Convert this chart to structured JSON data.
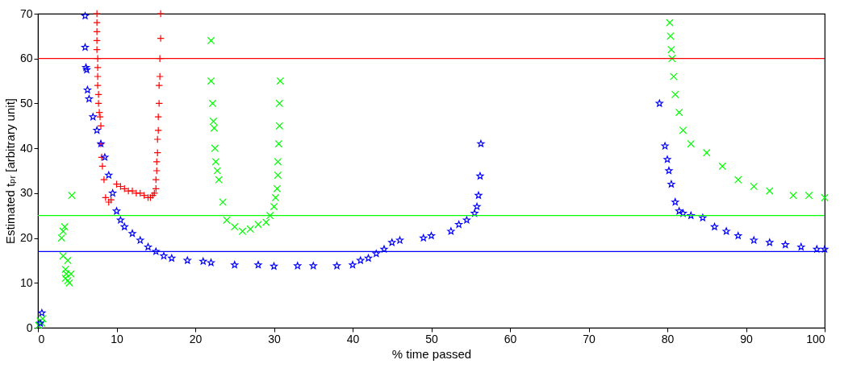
{
  "chart_data": {
    "type": "scatter",
    "xlabel": "% time passed",
    "ylabel": "Estimated tₚᵣ [arbitrary unit]",
    "xlim": [
      0,
      100
    ],
    "ylim": [
      0,
      70
    ],
    "xticks": [
      0,
      10,
      20,
      30,
      40,
      50,
      60,
      70,
      80,
      90,
      100
    ],
    "yticks": [
      0,
      10,
      20,
      30,
      40,
      50,
      60,
      70
    ],
    "grid": false,
    "series": [
      {
        "color": "#ff0000",
        "marker": "cross",
        "x": [
          7.5,
          7.5,
          7.5,
          7.5,
          7.5,
          7.6,
          7.6,
          7.6,
          7.6,
          7.7,
          7.7,
          7.8,
          7.9,
          8,
          8,
          8.1,
          8.2,
          8.4,
          8.6,
          9,
          9.3,
          10,
          10.5,
          11,
          11.5,
          12,
          12.5,
          13,
          13.5,
          14,
          14.3,
          14.6,
          14.8,
          15,
          15,
          15.1,
          15.1,
          15.2,
          15.2,
          15.3,
          15.3,
          15.4,
          15.4,
          15.5,
          15.5,
          15.6,
          15.6
        ],
        "values": [
          70,
          68,
          66,
          64,
          62,
          60,
          58,
          56,
          54,
          52,
          50,
          48,
          47,
          45,
          41,
          38,
          36,
          33,
          29,
          28,
          28.5,
          32,
          31.5,
          31,
          30.5,
          30.5,
          30,
          30,
          29.5,
          29,
          29,
          29.5,
          30,
          31,
          33,
          35,
          37,
          39,
          42,
          44,
          47,
          50,
          54,
          56,
          60,
          64.5,
          70
        ]
      },
      {
        "color": "#00ff00",
        "marker": "x",
        "x": [
          0.1,
          0.3,
          0.5,
          0.6,
          3,
          3.2,
          3.4,
          3.5,
          3.6,
          3.8,
          4,
          4.2,
          4.3,
          3.2,
          3.5,
          3.8,
          22,
          22,
          22.2,
          22.3,
          22.4,
          22.5,
          22.6,
          22.8,
          23,
          23.5,
          24,
          25,
          26,
          27,
          28,
          29,
          29.5,
          30,
          30.2,
          30.4,
          30.5,
          30.5,
          30.6,
          30.7,
          30.7,
          30.8,
          80.3,
          80.4,
          80.5,
          80.6,
          80.8,
          81,
          81.5,
          82,
          83,
          85,
          87,
          89,
          91,
          93,
          96,
          98,
          100
        ],
        "values": [
          0.5,
          1.5,
          1,
          2,
          20,
          21.5,
          22.5,
          11,
          12,
          10.5,
          10,
          12,
          29.5,
          16,
          13,
          15,
          64,
          55,
          50,
          46,
          44.5,
          40,
          37,
          35,
          33,
          28,
          24,
          22.5,
          21.5,
          22,
          23,
          23.5,
          25,
          27,
          29,
          31,
          34,
          37,
          41,
          45,
          50,
          55,
          68,
          65,
          62,
          60,
          56,
          52,
          48,
          44,
          41,
          39,
          36,
          33,
          31.5,
          30.5,
          29.5,
          29.5,
          29
        ]
      },
      {
        "color": "#0000ff",
        "marker": "star",
        "x": [
          0.3,
          0.5,
          6,
          6,
          6.1,
          6.2,
          6.3,
          6.5,
          7,
          7.5,
          8,
          8.5,
          9,
          9.5,
          10,
          10.5,
          11,
          12,
          13,
          14,
          15,
          16,
          17,
          19,
          21,
          22,
          25,
          28,
          30,
          33,
          35,
          38,
          40,
          41,
          42,
          43,
          44,
          45,
          46,
          49,
          50,
          52.5,
          53.5,
          54.5,
          55.5,
          55.8,
          56,
          56.2,
          56.3,
          79,
          79.7,
          80,
          80.2,
          80.5,
          81,
          81.5,
          82,
          83,
          84.5,
          86,
          87.5,
          89,
          91,
          93,
          95,
          97,
          99,
          100
        ],
        "values": [
          1,
          3.3,
          69.5,
          62.5,
          58,
          57.5,
          53,
          51,
          47,
          44,
          41,
          38,
          34,
          30,
          26,
          24,
          22.5,
          21,
          19.5,
          18,
          17,
          16,
          15.5,
          15,
          14.8,
          14.5,
          14,
          14,
          13.7,
          13.8,
          13.8,
          13.8,
          14,
          15,
          15.5,
          16.5,
          17.5,
          19,
          19.5,
          20,
          20.5,
          21.5,
          23,
          24,
          25.5,
          27,
          29.5,
          33.8,
          41,
          50,
          40.5,
          37.5,
          35,
          32,
          28,
          26,
          25.5,
          25,
          24.5,
          22.5,
          21.5,
          20.5,
          19.5,
          19,
          18.5,
          18,
          17.5,
          17.5
        ]
      }
    ],
    "ref_lines": [
      {
        "axis": "y",
        "value": 60,
        "color": "#ff0000"
      },
      {
        "axis": "y",
        "value": 25,
        "color": "#00ff00"
      },
      {
        "axis": "y",
        "value": 17,
        "color": "#0000ff"
      }
    ]
  }
}
